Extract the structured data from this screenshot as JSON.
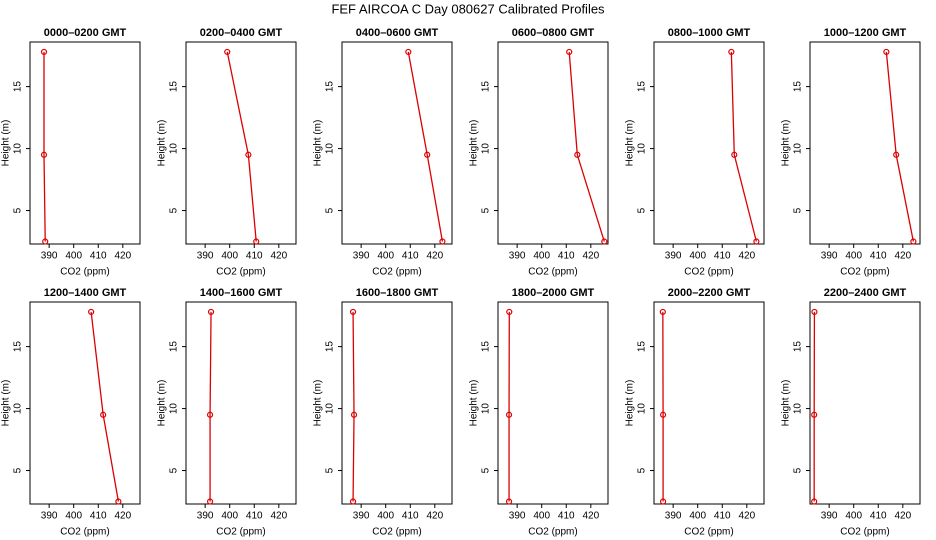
{
  "title": "FEF AIRCOA C  Day 080627  Calibrated Profiles",
  "chart_data": [
    {
      "type": "line",
      "title": "0000–0200 GMT",
      "xlabel": "CO2 (ppm)",
      "ylabel": "Height (m)",
      "x": [
        388.4,
        387.9,
        387.9
      ],
      "values": [
        2.5,
        9.5,
        17.8
      ],
      "xlim": [
        382.2,
        427
      ],
      "ylim": [
        2.3,
        18.6
      ],
      "xticks": [
        390,
        400,
        410,
        420
      ],
      "yticks": [
        5,
        10,
        15
      ],
      "color": "#dd0000"
    },
    {
      "type": "line",
      "title": "0200–0400 GMT",
      "xlabel": "CO2 (ppm)",
      "ylabel": "Height (m)",
      "x": [
        410.8,
        407.6,
        399.0
      ],
      "values": [
        2.5,
        9.5,
        17.8
      ],
      "xlim": [
        382.2,
        427
      ],
      "ylim": [
        2.3,
        18.6
      ],
      "xticks": [
        390,
        400,
        410,
        420
      ],
      "yticks": [
        5,
        10,
        15
      ],
      "color": "#dd0000"
    },
    {
      "type": "line",
      "title": "0400–0600 GMT",
      "xlabel": "CO2 (ppm)",
      "ylabel": "Height (m)",
      "x": [
        423.1,
        416.9,
        409.2
      ],
      "values": [
        2.5,
        9.5,
        17.8
      ],
      "xlim": [
        382.2,
        427
      ],
      "ylim": [
        2.3,
        18.6
      ],
      "xticks": [
        390,
        400,
        410,
        420
      ],
      "yticks": [
        5,
        10,
        15
      ],
      "color": "#dd0000"
    },
    {
      "type": "line",
      "title": "0600–0800 GMT",
      "xlabel": "CO2 (ppm)",
      "ylabel": "Height (m)",
      "x": [
        425.5,
        414.5,
        411.2
      ],
      "values": [
        2.5,
        9.5,
        17.8
      ],
      "xlim": [
        382.2,
        427
      ],
      "ylim": [
        2.3,
        18.6
      ],
      "xticks": [
        390,
        400,
        410,
        420
      ],
      "yticks": [
        5,
        10,
        15
      ],
      "color": "#dd0000"
    },
    {
      "type": "line",
      "title": "0800–1000 GMT",
      "xlabel": "CO2 (ppm)",
      "ylabel": "Height (m)",
      "x": [
        423.9,
        414.9,
        413.7
      ],
      "values": [
        2.5,
        9.5,
        17.8
      ],
      "xlim": [
        382.2,
        427
      ],
      "ylim": [
        2.3,
        18.6
      ],
      "xticks": [
        390,
        400,
        410,
        420
      ],
      "yticks": [
        5,
        10,
        15
      ],
      "color": "#dd0000"
    },
    {
      "type": "line",
      "title": "1000–1200 GMT",
      "xlabel": "CO2 (ppm)",
      "ylabel": "Height (m)",
      "x": [
        424.3,
        417.3,
        413.3
      ],
      "values": [
        2.5,
        9.5,
        17.8
      ],
      "xlim": [
        382.2,
        427
      ],
      "ylim": [
        2.3,
        18.6
      ],
      "xticks": [
        390,
        400,
        410,
        420
      ],
      "yticks": [
        5,
        10,
        15
      ],
      "color": "#dd0000"
    },
    {
      "type": "line",
      "title": "1200–1400 GMT",
      "xlabel": "CO2 (ppm)",
      "ylabel": "Height (m)",
      "x": [
        418.2,
        412.0,
        407.1
      ],
      "values": [
        2.5,
        9.5,
        17.8
      ],
      "xlim": [
        382.2,
        427
      ],
      "ylim": [
        2.3,
        18.6
      ],
      "xticks": [
        390,
        400,
        410,
        420
      ],
      "yticks": [
        5,
        10,
        15
      ],
      "color": "#dd0000"
    },
    {
      "type": "line",
      "title": "1400–1600 GMT",
      "xlabel": "CO2 (ppm)",
      "ylabel": "Height (m)",
      "x": [
        392.0,
        392.0,
        392.4
      ],
      "values": [
        2.5,
        9.5,
        17.8
      ],
      "xlim": [
        382.2,
        427
      ],
      "ylim": [
        2.3,
        18.6
      ],
      "xticks": [
        390,
        400,
        410,
        420
      ],
      "yticks": [
        5,
        10,
        15
      ],
      "color": "#dd0000"
    },
    {
      "type": "line",
      "title": "1600–1800 GMT",
      "xlabel": "CO2 (ppm)",
      "ylabel": "Height (m)",
      "x": [
        386.7,
        387.1,
        386.7
      ],
      "values": [
        2.5,
        9.5,
        17.8
      ],
      "xlim": [
        382.2,
        427
      ],
      "ylim": [
        2.3,
        18.6
      ],
      "xticks": [
        390,
        400,
        410,
        420
      ],
      "yticks": [
        5,
        10,
        15
      ],
      "color": "#dd0000"
    },
    {
      "type": "line",
      "title": "1800–2000 GMT",
      "xlabel": "CO2 (ppm)",
      "ylabel": "Height (m)",
      "x": [
        386.7,
        386.7,
        386.8
      ],
      "values": [
        2.5,
        9.5,
        17.8
      ],
      "xlim": [
        382.2,
        427
      ],
      "ylim": [
        2.3,
        18.6
      ],
      "xticks": [
        390,
        400,
        410,
        420
      ],
      "yticks": [
        5,
        10,
        15
      ],
      "color": "#dd0000"
    },
    {
      "type": "line",
      "title": "2000–2200 GMT",
      "xlabel": "CO2 (ppm)",
      "ylabel": "Height (m)",
      "x": [
        385.9,
        385.9,
        385.8
      ],
      "values": [
        2.5,
        9.5,
        17.8
      ],
      "xlim": [
        382.2,
        427
      ],
      "ylim": [
        2.3,
        18.6
      ],
      "xticks": [
        390,
        400,
        410,
        420
      ],
      "yticks": [
        5,
        10,
        15
      ],
      "color": "#dd0000"
    },
    {
      "type": "line",
      "title": "2200–2400 GMT",
      "xlabel": "CO2 (ppm)",
      "ylabel": "Height (m)",
      "x": [
        383.9,
        383.9,
        384.0
      ],
      "values": [
        2.5,
        9.5,
        17.8
      ],
      "xlim": [
        382.2,
        427
      ],
      "ylim": [
        2.3,
        18.6
      ],
      "xticks": [
        390,
        400,
        410,
        420
      ],
      "yticks": [
        5,
        10,
        15
      ],
      "color": "#dd0000"
    }
  ]
}
